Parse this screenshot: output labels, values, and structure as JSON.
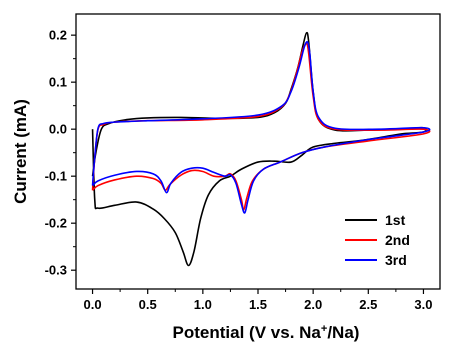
{
  "chart_data": {
    "type": "line",
    "xlabel": "Potential (V vs. Na",
    "xlabel_sup": "+",
    "xlabel_tail": "/Na)",
    "ylabel": "Current (mA)",
    "xlim": [
      -0.15,
      3.15
    ],
    "ylim": [
      -0.34,
      0.245
    ],
    "x_ticks": [
      0.0,
      0.5,
      1.0,
      1.5,
      2.0,
      2.5,
      3.0
    ],
    "x_tick_labels": [
      "0.0",
      "0.5",
      "1.0",
      "1.5",
      "2.0",
      "2.5",
      "3.0"
    ],
    "y_ticks": [
      -0.3,
      -0.2,
      -0.1,
      0.0,
      0.1,
      0.2
    ],
    "y_tick_labels": [
      "-0.3",
      "-0.2",
      "-0.1",
      "0.0",
      "0.1",
      "0.2"
    ],
    "legend_position": "bottom-right",
    "series": [
      {
        "name": "1st",
        "color": "#000000",
        "points": [
          [
            0.0,
            0.0
          ],
          [
            0.02,
            -0.15
          ],
          [
            0.05,
            -0.168
          ],
          [
            0.2,
            -0.162
          ],
          [
            0.4,
            -0.155
          ],
          [
            0.55,
            -0.17
          ],
          [
            0.65,
            -0.19
          ],
          [
            0.75,
            -0.22
          ],
          [
            0.82,
            -0.26
          ],
          [
            0.87,
            -0.29
          ],
          [
            0.92,
            -0.26
          ],
          [
            0.98,
            -0.19
          ],
          [
            1.05,
            -0.14
          ],
          [
            1.15,
            -0.11
          ],
          [
            1.25,
            -0.1
          ],
          [
            1.35,
            -0.085
          ],
          [
            1.5,
            -0.07
          ],
          [
            1.65,
            -0.068
          ],
          [
            1.8,
            -0.07
          ],
          [
            1.9,
            -0.055
          ],
          [
            2.0,
            -0.038
          ],
          [
            2.2,
            -0.03
          ],
          [
            2.4,
            -0.025
          ],
          [
            2.6,
            -0.018
          ],
          [
            2.8,
            -0.01
          ],
          [
            3.0,
            -0.006
          ],
          [
            3.0,
            0.003
          ],
          [
            2.8,
            0.0
          ],
          [
            2.5,
            -0.002
          ],
          [
            2.2,
            -0.002
          ],
          [
            2.05,
            0.02
          ],
          [
            2.0,
            0.08
          ],
          [
            1.96,
            0.185
          ],
          [
            1.94,
            0.205
          ],
          [
            1.91,
            0.18
          ],
          [
            1.86,
            0.13
          ],
          [
            1.8,
            0.085
          ],
          [
            1.75,
            0.055
          ],
          [
            1.65,
            0.035
          ],
          [
            1.5,
            0.025
          ],
          [
            1.2,
            0.023
          ],
          [
            0.8,
            0.025
          ],
          [
            0.5,
            0.024
          ],
          [
            0.3,
            0.02
          ],
          [
            0.15,
            0.012
          ],
          [
            0.08,
            0.0
          ],
          [
            0.03,
            -0.05
          ],
          [
            0.0,
            -0.1
          ]
        ]
      },
      {
        "name": "2nd",
        "color": "#ff0000",
        "points": [
          [
            0.0,
            -0.13
          ],
          [
            0.05,
            -0.12
          ],
          [
            0.2,
            -0.108
          ],
          [
            0.4,
            -0.1
          ],
          [
            0.55,
            -0.105
          ],
          [
            0.62,
            -0.115
          ],
          [
            0.66,
            -0.13
          ],
          [
            0.7,
            -0.118
          ],
          [
            0.8,
            -0.098
          ],
          [
            0.9,
            -0.088
          ],
          [
            1.0,
            -0.09
          ],
          [
            1.1,
            -0.1
          ],
          [
            1.2,
            -0.1
          ],
          [
            1.25,
            -0.095
          ],
          [
            1.3,
            -0.11
          ],
          [
            1.35,
            -0.15
          ],
          [
            1.37,
            -0.172
          ],
          [
            1.4,
            -0.145
          ],
          [
            1.45,
            -0.11
          ],
          [
            1.55,
            -0.085
          ],
          [
            1.7,
            -0.07
          ],
          [
            1.9,
            -0.05
          ],
          [
            2.1,
            -0.038
          ],
          [
            2.5,
            -0.025
          ],
          [
            3.0,
            -0.01
          ],
          [
            3.0,
            0.0
          ],
          [
            2.6,
            -0.002
          ],
          [
            2.2,
            0.0
          ],
          [
            2.05,
            0.02
          ],
          [
            2.0,
            0.07
          ],
          [
            1.96,
            0.16
          ],
          [
            1.94,
            0.182
          ],
          [
            1.9,
            0.165
          ],
          [
            1.85,
            0.12
          ],
          [
            1.78,
            0.07
          ],
          [
            1.7,
            0.045
          ],
          [
            1.5,
            0.027
          ],
          [
            1.0,
            0.02
          ],
          [
            0.5,
            0.018
          ],
          [
            0.2,
            0.015
          ],
          [
            0.1,
            0.01
          ],
          [
            0.05,
            0.0
          ],
          [
            0.02,
            -0.06
          ],
          [
            0.0,
            -0.13
          ]
        ]
      },
      {
        "name": "3rd",
        "color": "#0000ff",
        "points": [
          [
            0.0,
            -0.12
          ],
          [
            0.05,
            -0.11
          ],
          [
            0.2,
            -0.098
          ],
          [
            0.4,
            -0.09
          ],
          [
            0.55,
            -0.095
          ],
          [
            0.62,
            -0.11
          ],
          [
            0.67,
            -0.135
          ],
          [
            0.71,
            -0.115
          ],
          [
            0.8,
            -0.092
          ],
          [
            0.9,
            -0.083
          ],
          [
            1.0,
            -0.083
          ],
          [
            1.1,
            -0.092
          ],
          [
            1.2,
            -0.1
          ],
          [
            1.25,
            -0.097
          ],
          [
            1.3,
            -0.115
          ],
          [
            1.35,
            -0.16
          ],
          [
            1.38,
            -0.178
          ],
          [
            1.41,
            -0.15
          ],
          [
            1.46,
            -0.11
          ],
          [
            1.55,
            -0.085
          ],
          [
            1.7,
            -0.07
          ],
          [
            1.9,
            -0.05
          ],
          [
            2.1,
            -0.038
          ],
          [
            2.5,
            -0.022
          ],
          [
            3.0,
            -0.006
          ],
          [
            3.0,
            0.003
          ],
          [
            2.6,
            0.0
          ],
          [
            2.2,
            0.002
          ],
          [
            2.05,
            0.025
          ],
          [
            2.0,
            0.08
          ],
          [
            1.97,
            0.16
          ],
          [
            1.95,
            0.185
          ],
          [
            1.92,
            0.175
          ],
          [
            1.87,
            0.13
          ],
          [
            1.8,
            0.08
          ],
          [
            1.72,
            0.05
          ],
          [
            1.5,
            0.03
          ],
          [
            1.0,
            0.022
          ],
          [
            0.5,
            0.018
          ],
          [
            0.2,
            0.015
          ],
          [
            0.1,
            0.012
          ],
          [
            0.05,
            0.002
          ],
          [
            0.02,
            -0.06
          ],
          [
            0.0,
            -0.12
          ]
        ]
      }
    ]
  }
}
